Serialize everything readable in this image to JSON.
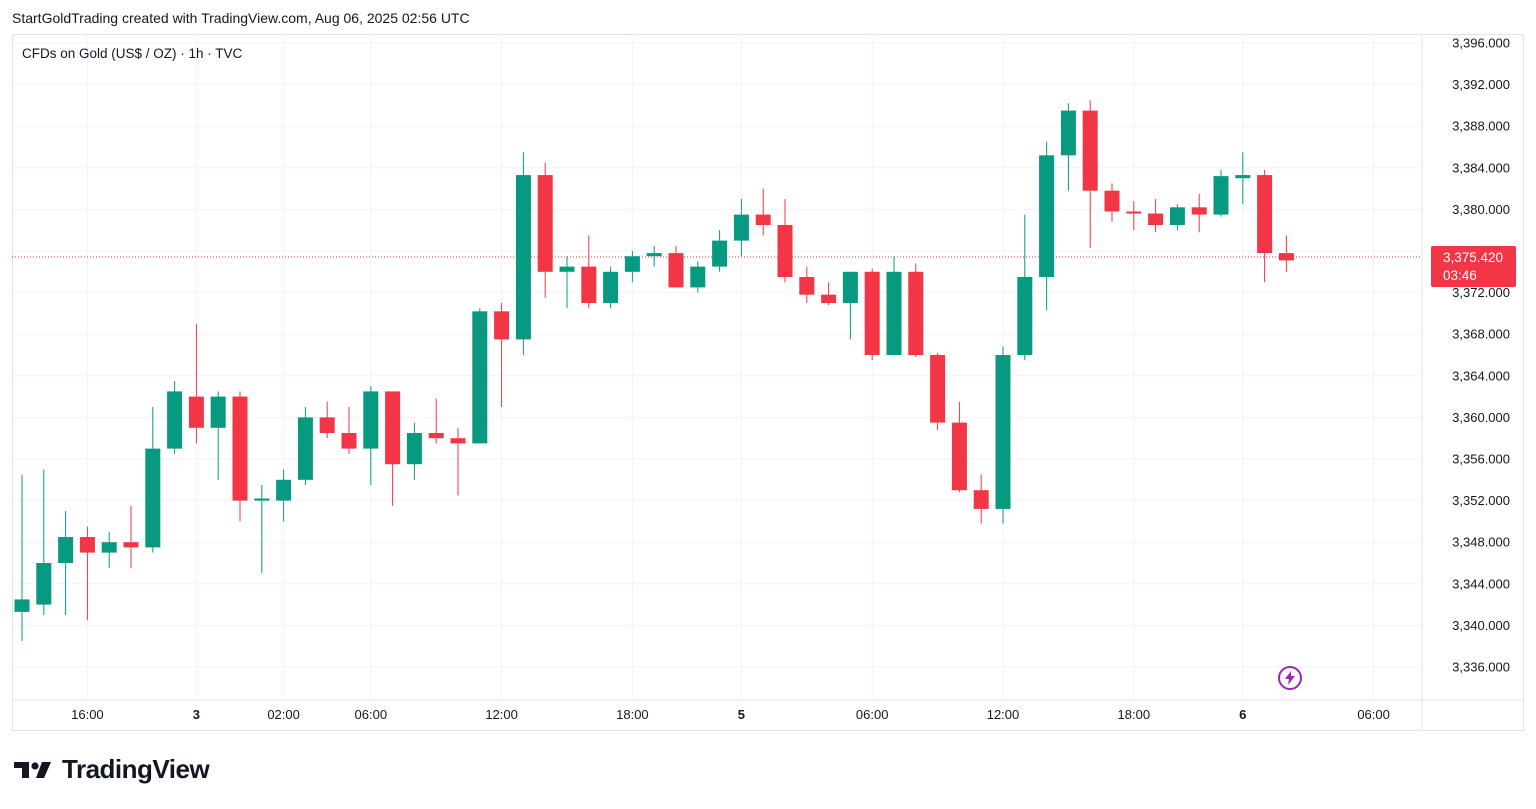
{
  "header": {
    "credit": "StartGoldTrading created with TradingView.com, Aug 06, 2025 02:56 UTC"
  },
  "symbol": {
    "title": "CFDs on Gold (US$ / OZ) · 1h · TVC"
  },
  "last_price": {
    "value": "3,375.420",
    "countdown": "03:46"
  },
  "footer": {
    "brand": "TradingView"
  },
  "colors": {
    "up": "#089981",
    "down": "#f23645",
    "grid": "#f0f3fa",
    "lastline": "#f23645",
    "flash": "#9c27b0"
  },
  "icons": {
    "logo": "tradingview-logo-icon",
    "flash": "lightning-icon"
  },
  "chart_data": {
    "type": "candlestick",
    "title": "CFDs on Gold (US$ / OZ) · 1h · TVC",
    "interval": "1h",
    "ylim": [
      3332,
      3398
    ],
    "y_ticks": [
      3396,
      3392,
      3388,
      3384,
      3380,
      3376,
      3372,
      3368,
      3364,
      3360,
      3356,
      3352,
      3348,
      3344,
      3340,
      3336
    ],
    "y_tick_labels": [
      "3,396.000",
      "3,392.000",
      "3,388.000",
      "3,384.000",
      "3,380.000",
      "3,376.000",
      "3,372.000",
      "3,368.000",
      "3,364.000",
      "3,360.000",
      "3,356.000",
      "3,352.000",
      "3,348.000",
      "3,344.000",
      "3,340.000",
      "3,336.000"
    ],
    "x_labels": [
      {
        "index": 3,
        "text": "16:00",
        "bold": false
      },
      {
        "index": 8,
        "text": "3",
        "bold": true
      },
      {
        "index": 12,
        "text": "02:00",
        "bold": false
      },
      {
        "index": 16,
        "text": "06:00",
        "bold": false
      },
      {
        "index": 22,
        "text": "12:00",
        "bold": false
      },
      {
        "index": 28,
        "text": "18:00",
        "bold": false
      },
      {
        "index": 33,
        "text": "5",
        "bold": true
      },
      {
        "index": 39,
        "text": "06:00",
        "bold": false
      },
      {
        "index": 45,
        "text": "12:00",
        "bold": false
      },
      {
        "index": 51,
        "text": "18:00",
        "bold": false
      },
      {
        "index": 56,
        "text": "6",
        "bold": true
      },
      {
        "index": 62,
        "text": "06:00",
        "bold": false
      }
    ],
    "last_price": 3375.42,
    "candles": [
      {
        "o": 3341.3,
        "h": 3354.5,
        "l": 3338.5,
        "c": 3342.5
      },
      {
        "o": 3342.0,
        "h": 3355.0,
        "l": 3341.0,
        "c": 3346.0
      },
      {
        "o": 3346.0,
        "h": 3351.0,
        "l": 3341.0,
        "c": 3348.5
      },
      {
        "o": 3348.5,
        "h": 3349.5,
        "l": 3340.5,
        "c": 3347.0
      },
      {
        "o": 3347.0,
        "h": 3349.0,
        "l": 3345.5,
        "c": 3348.0
      },
      {
        "o": 3348.0,
        "h": 3351.5,
        "l": 3345.5,
        "c": 3347.5
      },
      {
        "o": 3347.5,
        "h": 3361.0,
        "l": 3347.0,
        "c": 3357.0
      },
      {
        "o": 3357.0,
        "h": 3363.5,
        "l": 3356.5,
        "c": 3362.5
      },
      {
        "o": 3362.0,
        "h": 3369.0,
        "l": 3357.5,
        "c": 3359.0
      },
      {
        "o": 3359.0,
        "h": 3362.5,
        "l": 3354.0,
        "c": 3362.0
      },
      {
        "o": 3362.0,
        "h": 3362.5,
        "l": 3350.0,
        "c": 3352.0
      },
      {
        "o": 3352.0,
        "h": 3353.5,
        "l": 3345.0,
        "c": 3352.2
      },
      {
        "o": 3352.0,
        "h": 3355.0,
        "l": 3350.0,
        "c": 3354.0
      },
      {
        "o": 3354.0,
        "h": 3361.0,
        "l": 3353.5,
        "c": 3360.0
      },
      {
        "o": 3360.0,
        "h": 3361.5,
        "l": 3358.0,
        "c": 3358.5
      },
      {
        "o": 3358.5,
        "h": 3361.0,
        "l": 3356.5,
        "c": 3357.0
      },
      {
        "o": 3357.0,
        "h": 3363.0,
        "l": 3353.5,
        "c": 3362.5
      },
      {
        "o": 3362.5,
        "h": 3362.5,
        "l": 3351.5,
        "c": 3355.5
      },
      {
        "o": 3355.5,
        "h": 3359.5,
        "l": 3354.0,
        "c": 3358.5
      },
      {
        "o": 3358.5,
        "h": 3361.8,
        "l": 3357.5,
        "c": 3358.0
      },
      {
        "o": 3358.0,
        "h": 3359.0,
        "l": 3352.5,
        "c": 3357.5
      },
      {
        "o": 3357.5,
        "h": 3370.5,
        "l": 3357.5,
        "c": 3370.2
      },
      {
        "o": 3370.2,
        "h": 3371.0,
        "l": 3361.0,
        "c": 3367.5
      },
      {
        "o": 3367.5,
        "h": 3385.5,
        "l": 3366.0,
        "c": 3383.3
      },
      {
        "o": 3383.3,
        "h": 3384.5,
        "l": 3371.5,
        "c": 3374.0
      },
      {
        "o": 3374.0,
        "h": 3375.5,
        "l": 3370.5,
        "c": 3374.5
      },
      {
        "o": 3374.5,
        "h": 3377.5,
        "l": 3370.5,
        "c": 3371.0
      },
      {
        "o": 3371.0,
        "h": 3374.5,
        "l": 3370.5,
        "c": 3374.0
      },
      {
        "o": 3374.0,
        "h": 3376.0,
        "l": 3373.0,
        "c": 3375.5
      },
      {
        "o": 3375.5,
        "h": 3376.5,
        "l": 3374.5,
        "c": 3375.8
      },
      {
        "o": 3375.8,
        "h": 3376.5,
        "l": 3372.5,
        "c": 3372.5
      },
      {
        "o": 3372.5,
        "h": 3375.0,
        "l": 3372.0,
        "c": 3374.5
      },
      {
        "o": 3374.5,
        "h": 3378.0,
        "l": 3374.0,
        "c": 3377.0
      },
      {
        "o": 3377.0,
        "h": 3381.0,
        "l": 3375.5,
        "c": 3379.5
      },
      {
        "o": 3379.5,
        "h": 3382.0,
        "l": 3377.5,
        "c": 3378.5
      },
      {
        "o": 3378.5,
        "h": 3381.0,
        "l": 3373.0,
        "c": 3373.5
      },
      {
        "o": 3373.5,
        "h": 3374.5,
        "l": 3371.0,
        "c": 3371.8
      },
      {
        "o": 3371.8,
        "h": 3373.0,
        "l": 3370.8,
        "c": 3371.0
      },
      {
        "o": 3371.0,
        "h": 3374.0,
        "l": 3367.5,
        "c": 3374.0
      },
      {
        "o": 3374.0,
        "h": 3374.3,
        "l": 3365.5,
        "c": 3366.0
      },
      {
        "o": 3366.0,
        "h": 3375.5,
        "l": 3366.0,
        "c": 3374.0
      },
      {
        "o": 3374.0,
        "h": 3374.8,
        "l": 3365.8,
        "c": 3366.0
      },
      {
        "o": 3366.0,
        "h": 3366.2,
        "l": 3358.8,
        "c": 3359.5
      },
      {
        "o": 3359.5,
        "h": 3361.5,
        "l": 3352.8,
        "c": 3353.0
      },
      {
        "o": 3353.0,
        "h": 3354.5,
        "l": 3349.8,
        "c": 3351.2
      },
      {
        "o": 3351.2,
        "h": 3366.8,
        "l": 3349.8,
        "c": 3366.0
      },
      {
        "o": 3366.0,
        "h": 3379.5,
        "l": 3365.5,
        "c": 3373.5
      },
      {
        "o": 3373.5,
        "h": 3386.5,
        "l": 3370.3,
        "c": 3385.2
      },
      {
        "o": 3385.2,
        "h": 3390.2,
        "l": 3381.8,
        "c": 3389.5
      },
      {
        "o": 3389.5,
        "h": 3390.5,
        "l": 3376.3,
        "c": 3381.8
      },
      {
        "o": 3381.8,
        "h": 3382.5,
        "l": 3378.8,
        "c": 3379.8
      },
      {
        "o": 3379.8,
        "h": 3380.8,
        "l": 3378.0,
        "c": 3379.6
      },
      {
        "o": 3379.6,
        "h": 3381.0,
        "l": 3377.8,
        "c": 3378.5
      },
      {
        "o": 3378.5,
        "h": 3380.5,
        "l": 3378.0,
        "c": 3380.2
      },
      {
        "o": 3380.2,
        "h": 3381.5,
        "l": 3377.8,
        "c": 3379.5
      },
      {
        "o": 3379.5,
        "h": 3383.8,
        "l": 3379.3,
        "c": 3383.2
      },
      {
        "o": 3383.0,
        "h": 3385.5,
        "l": 3380.5,
        "c": 3383.3
      },
      {
        "o": 3383.3,
        "h": 3383.8,
        "l": 3373.0,
        "c": 3375.8
      },
      {
        "o": 3375.8,
        "h": 3377.5,
        "l": 3374.0,
        "c": 3375.1
      }
    ]
  }
}
